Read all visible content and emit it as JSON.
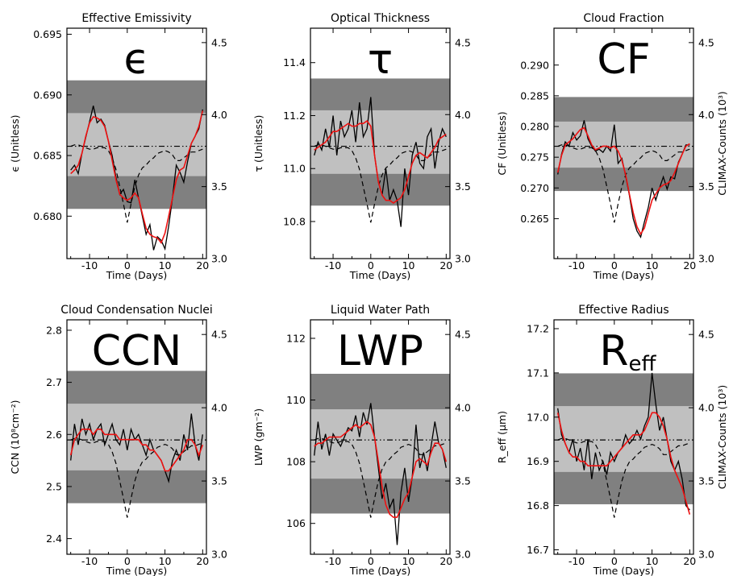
{
  "colors": {
    "outer_band": "#808080",
    "inner_band": "#c0c0c0",
    "raw_line": "#000000",
    "smooth_line": "#ee1111",
    "climax_line": "#000000"
  },
  "climax_axis": {
    "ylim": [
      3.0,
      4.6
    ],
    "ticks": [
      "3.0",
      "3.5",
      "4.0",
      "4.5"
    ]
  },
  "climax_ticks_num": [
    3.0,
    3.5,
    4.0,
    4.5
  ],
  "climax_series": {
    "x": [
      -15,
      -14,
      -13,
      -12,
      -11,
      -10,
      -9,
      -8,
      -7,
      -6,
      -5,
      -4,
      -3,
      -2,
      -1,
      0,
      1,
      2,
      3,
      4,
      5,
      6,
      7,
      8,
      9,
      10,
      11,
      12,
      13,
      14,
      15,
      16,
      17,
      18,
      19,
      20
    ],
    "values": [
      3.78,
      3.79,
      3.79,
      3.78,
      3.77,
      3.76,
      3.76,
      3.77,
      3.77,
      3.77,
      3.75,
      3.7,
      3.62,
      3.5,
      3.38,
      3.25,
      3.38,
      3.5,
      3.58,
      3.63,
      3.65,
      3.68,
      3.7,
      3.73,
      3.74,
      3.75,
      3.74,
      3.72,
      3.68,
      3.68,
      3.7,
      3.72,
      3.74,
      3.74,
      3.75,
      3.76
    ],
    "reference_level": 3.78
  },
  "x_axis": {
    "label": "Time (Days)",
    "xlim": [
      -16,
      21
    ],
    "ticks": [
      "-10",
      "0",
      "10",
      "20"
    ]
  },
  "x_ticks_num": [
    -10,
    0,
    10,
    20
  ],
  "chart_data": [
    {
      "type": "line",
      "title": "Effective Emissivity",
      "symbol": "ϵ",
      "ylabel": "ϵ (Unitless)",
      "y2label": "",
      "ylim": [
        0.6765,
        0.6955
      ],
      "yticks": [
        "0.680",
        "0.685",
        "0.690",
        "0.695"
      ],
      "yticks_num": [
        0.68,
        0.685,
        0.69,
        0.695
      ],
      "bands": {
        "inner": [
          0.6833,
          0.6885
        ],
        "outer": [
          0.6806,
          0.6912
        ]
      },
      "x": [
        -15,
        -14,
        -13,
        -12,
        -11,
        -10,
        -9,
        -8,
        -7,
        -6,
        -5,
        -4,
        -3,
        -2,
        -1,
        0,
        1,
        2,
        3,
        4,
        5,
        6,
        7,
        8,
        9,
        10,
        11,
        12,
        13,
        14,
        15,
        16,
        17,
        18,
        19,
        20
      ],
      "series": [
        {
          "name": "",
          "values": [
            0.6838,
            0.6842,
            0.6835,
            0.6852,
            0.6865,
            0.6878,
            0.6891,
            0.6877,
            0.688,
            0.6875,
            0.6862,
            0.685,
            0.6832,
            0.6818,
            0.6822,
            0.6812,
            0.6811,
            0.683,
            0.6815,
            0.68,
            0.6785,
            0.6793,
            0.6772,
            0.6783,
            0.678,
            0.6773,
            0.6792,
            0.6815,
            0.6842,
            0.6836,
            0.6828,
            0.6845,
            0.686,
            0.6866,
            0.6872,
            0.6888
          ]
        },
        {
          "name": "",
          "values": [
            0.6835,
            0.6838,
            0.6842,
            0.6852,
            0.6866,
            0.6877,
            0.6882,
            0.6881,
            0.6879,
            0.6874,
            0.6862,
            0.6846,
            0.683,
            0.6818,
            0.6815,
            0.6813,
            0.6815,
            0.6819,
            0.6815,
            0.6802,
            0.679,
            0.6785,
            0.6783,
            0.6782,
            0.6778,
            0.6786,
            0.68,
            0.6815,
            0.683,
            0.6838,
            0.684,
            0.685,
            0.686,
            0.6866,
            0.6874,
            0.6887
          ]
        }
      ]
    },
    {
      "type": "line",
      "title": "Optical Thickness",
      "symbol": "τ",
      "ylabel": "τ (Unitless)",
      "y2label": "",
      "ylim": [
        10.66,
        11.53
      ],
      "yticks": [
        "10.8",
        "11.0",
        "11.2",
        "11.4"
      ],
      "yticks_num": [
        10.8,
        11.0,
        11.2,
        11.4
      ],
      "bands": {
        "inner": [
          10.98,
          11.22
        ],
        "outer": [
          10.86,
          11.34
        ]
      },
      "x": [
        -15,
        -14,
        -13,
        -12,
        -11,
        -10,
        -9,
        -8,
        -7,
        -6,
        -5,
        -4,
        -3,
        -2,
        -1,
        0,
        1,
        2,
        3,
        4,
        5,
        6,
        7,
        8,
        9,
        10,
        11,
        12,
        13,
        14,
        15,
        16,
        17,
        18,
        19,
        20
      ],
      "series": [
        {
          "name": "",
          "values": [
            11.05,
            11.1,
            11.07,
            11.15,
            11.08,
            11.2,
            11.05,
            11.18,
            11.12,
            11.15,
            11.22,
            11.1,
            11.25,
            11.12,
            11.15,
            11.27,
            11.05,
            10.95,
            10.9,
            11.0,
            10.88,
            10.92,
            10.88,
            10.78,
            11.0,
            10.9,
            11.05,
            11.1,
            11.02,
            11.0,
            11.12,
            11.15,
            11.0,
            11.1,
            11.15,
            11.12
          ]
        },
        {
          "name": "",
          "values": [
            11.07,
            11.08,
            11.09,
            11.1,
            11.12,
            11.14,
            11.14,
            11.15,
            11.16,
            11.17,
            11.16,
            11.16,
            11.17,
            11.17,
            11.18,
            11.16,
            11.05,
            10.95,
            10.9,
            10.88,
            10.88,
            10.87,
            10.88,
            10.89,
            10.92,
            10.97,
            11.02,
            11.05,
            11.06,
            11.05,
            11.04,
            11.06,
            11.08,
            11.11,
            11.12,
            11.13
          ]
        }
      ]
    },
    {
      "type": "line",
      "title": "Cloud Fraction",
      "symbol": "CF",
      "ylabel": "CF (Unitless)",
      "y2label": "CLIMAX-Counts (10³)",
      "ylim": [
        0.2585,
        0.296
      ],
      "yticks": [
        "0.265",
        "0.270",
        "0.275",
        "0.280",
        "0.285",
        "0.290"
      ],
      "yticks_num": [
        0.265,
        0.27,
        0.275,
        0.28,
        0.285,
        0.29
      ],
      "bands": {
        "inner": [
          0.2733,
          0.2808
        ],
        "outer": [
          0.2695,
          0.2848
        ]
      },
      "x": [
        -15,
        -14,
        -13,
        -12,
        -11,
        -10,
        -9,
        -8,
        -7,
        -6,
        -5,
        -4,
        -3,
        -2,
        -1,
        0,
        1,
        2,
        3,
        4,
        5,
        6,
        7,
        8,
        9,
        10,
        11,
        12,
        13,
        14,
        15,
        16,
        17,
        18,
        19,
        20
      ],
      "series": [
        {
          "name": "",
          "values": [
            0.2722,
            0.2755,
            0.2775,
            0.2768,
            0.279,
            0.2778,
            0.2785,
            0.281,
            0.278,
            0.2768,
            0.276,
            0.2763,
            0.2758,
            0.2768,
            0.276,
            0.2803,
            0.274,
            0.2748,
            0.272,
            0.2688,
            0.265,
            0.263,
            0.262,
            0.2645,
            0.2668,
            0.27,
            0.268,
            0.27,
            0.2718,
            0.2698,
            0.2718,
            0.2715,
            0.2742,
            0.2755,
            0.277,
            0.277
          ]
        },
        {
          "name": "",
          "values": [
            0.2725,
            0.2753,
            0.277,
            0.2775,
            0.278,
            0.2788,
            0.2795,
            0.2798,
            0.2785,
            0.277,
            0.2762,
            0.2765,
            0.2768,
            0.2768,
            0.2765,
            0.2768,
            0.276,
            0.2745,
            0.2722,
            0.269,
            0.266,
            0.2637,
            0.2625,
            0.2635,
            0.2658,
            0.268,
            0.269,
            0.27,
            0.2705,
            0.2707,
            0.2712,
            0.2725,
            0.274,
            0.2755,
            0.2768,
            0.2772
          ]
        }
      ]
    },
    {
      "type": "line",
      "title": "Cloud Condensation Nuclei",
      "symbol": "CCN",
      "ylabel": "CCN (10⁸cm⁻²)",
      "y2label": "",
      "ylim": [
        2.37,
        2.82
      ],
      "yticks": [
        "2.4",
        "2.5",
        "2.6",
        "2.7",
        "2.8"
      ],
      "yticks_num": [
        2.4,
        2.5,
        2.6,
        2.7,
        2.8
      ],
      "bands": {
        "inner": [
          2.531,
          2.659
        ],
        "outer": [
          2.468,
          2.722
        ]
      },
      "x": [
        -15,
        -14,
        -13,
        -12,
        -11,
        -10,
        -9,
        -8,
        -7,
        -6,
        -5,
        -4,
        -3,
        -2,
        -1,
        0,
        1,
        2,
        3,
        4,
        5,
        6,
        7,
        8,
        9,
        10,
        11,
        12,
        13,
        14,
        15,
        16,
        17,
        18,
        19,
        20
      ],
      "series": [
        {
          "name": "",
          "values": [
            2.55,
            2.62,
            2.58,
            2.63,
            2.6,
            2.62,
            2.59,
            2.61,
            2.62,
            2.58,
            2.6,
            2.62,
            2.59,
            2.58,
            2.61,
            2.57,
            2.61,
            2.59,
            2.6,
            2.58,
            2.56,
            2.59,
            2.57,
            2.56,
            2.55,
            2.53,
            2.51,
            2.55,
            2.57,
            2.55,
            2.6,
            2.57,
            2.64,
            2.58,
            2.55,
            2.6
          ]
        },
        {
          "name": "",
          "values": [
            2.56,
            2.59,
            2.6,
            2.61,
            2.61,
            2.61,
            2.6,
            2.61,
            2.61,
            2.6,
            2.6,
            2.6,
            2.6,
            2.59,
            2.59,
            2.59,
            2.59,
            2.59,
            2.59,
            2.58,
            2.58,
            2.57,
            2.57,
            2.56,
            2.55,
            2.53,
            2.53,
            2.54,
            2.55,
            2.56,
            2.57,
            2.59,
            2.59,
            2.58,
            2.56,
            2.58
          ]
        }
      ]
    },
    {
      "type": "line",
      "title": "Liquid Water Path",
      "symbol": "LWP",
      "ylabel": "LWP (gm⁻²)",
      "y2label": "",
      "ylim": [
        105.0,
        112.6
      ],
      "yticks": [
        "106",
        "108",
        "110",
        "112"
      ],
      "yticks_num": [
        106,
        108,
        110,
        112
      ],
      "bands": {
        "inner": [
          107.45,
          109.7
        ],
        "outer": [
          106.32,
          110.85
        ]
      },
      "x": [
        -15,
        -14,
        -13,
        -12,
        -11,
        -10,
        -9,
        -8,
        -7,
        -6,
        -5,
        -4,
        -3,
        -2,
        -1,
        0,
        1,
        2,
        3,
        4,
        5,
        6,
        7,
        8,
        9,
        10,
        11,
        12,
        13,
        14,
        15,
        16,
        17,
        18,
        19,
        20
      ],
      "series": [
        {
          "name": "",
          "values": [
            108.2,
            109.3,
            108.4,
            108.9,
            108.2,
            108.9,
            108.7,
            108.5,
            108.8,
            109.1,
            109.0,
            109.5,
            108.8,
            109.6,
            109.2,
            109.9,
            108.8,
            107.8,
            106.8,
            107.3,
            106.5,
            106.8,
            105.3,
            107.0,
            107.8,
            106.7,
            107.5,
            109.2,
            107.8,
            108.3,
            107.7,
            108.5,
            109.3,
            108.6,
            108.4,
            107.8
          ]
        },
        {
          "name": "",
          "values": [
            108.5,
            108.6,
            108.6,
            108.7,
            108.8,
            108.8,
            108.8,
            108.8,
            108.9,
            109.0,
            109.1,
            109.2,
            109.1,
            109.2,
            109.3,
            109.2,
            108.8,
            108.0,
            107.2,
            106.6,
            106.3,
            106.2,
            106.2,
            106.5,
            106.8,
            107.0,
            107.5,
            108.0,
            108.1,
            108.0,
            107.9,
            108.3,
            108.6,
            108.6,
            108.4,
            108.0
          ]
        }
      ]
    },
    {
      "type": "line",
      "title": "Effective Radius",
      "symbol": "R",
      "symbol_sub": "eff",
      "ylabel": "R_eff (μm)",
      "y2label": "CLIMAX-Counts (10³)",
      "ylim": [
        16.69,
        17.22
      ],
      "yticks": [
        "16.7",
        "16.8",
        "16.9",
        "17.0",
        "17.1",
        "17.2"
      ],
      "yticks_num": [
        16.7,
        16.8,
        16.9,
        17.0,
        17.1,
        17.2
      ],
      "bands": {
        "inner": [
          16.876,
          17.025
        ],
        "outer": [
          16.803,
          17.099
        ]
      },
      "x": [
        -15,
        -14,
        -13,
        -12,
        -11,
        -10,
        -9,
        -8,
        -7,
        -6,
        -5,
        -4,
        -3,
        -2,
        -1,
        0,
        1,
        2,
        3,
        4,
        5,
        6,
        7,
        8,
        9,
        10,
        11,
        12,
        13,
        14,
        15,
        16,
        17,
        18,
        19,
        20
      ],
      "series": [
        {
          "name": "",
          "values": [
            17.02,
            16.96,
            16.94,
            16.92,
            16.95,
            16.9,
            16.93,
            16.88,
            16.95,
            16.86,
            16.92,
            16.88,
            16.9,
            16.87,
            16.92,
            16.9,
            16.92,
            16.93,
            16.96,
            16.94,
            16.95,
            16.97,
            16.95,
            16.98,
            17.0,
            17.1,
            17.03,
            16.97,
            17.0,
            16.95,
            16.9,
            16.88,
            16.9,
            16.86,
            16.8,
            16.79
          ]
        },
        {
          "name": "",
          "values": [
            17.01,
            16.97,
            16.94,
            16.92,
            16.91,
            16.91,
            16.9,
            16.9,
            16.89,
            16.89,
            16.89,
            16.89,
            16.89,
            16.89,
            16.9,
            16.91,
            16.92,
            16.93,
            16.94,
            16.95,
            16.96,
            16.96,
            16.96,
            16.97,
            16.99,
            17.01,
            17.01,
            17.0,
            16.98,
            16.95,
            16.91,
            16.88,
            16.86,
            16.84,
            16.81,
            16.78
          ]
        }
      ]
    }
  ]
}
